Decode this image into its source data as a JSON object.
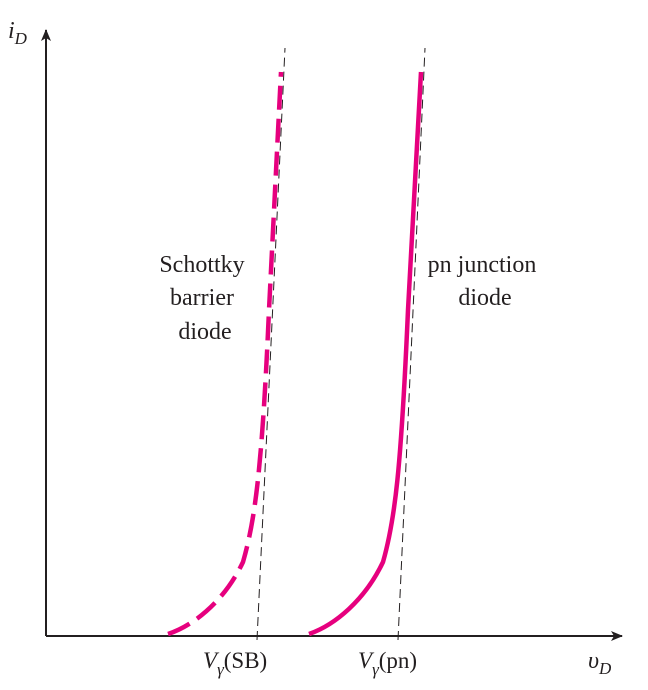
{
  "axes": {
    "y_label_main": "i",
    "y_label_sub": "D",
    "x_label_main": "υ",
    "x_label_sub": "D"
  },
  "curves": {
    "schottky": {
      "label_lines": [
        "Schottky",
        "barrier",
        "diode"
      ],
      "style": "dashed"
    },
    "pn": {
      "label_lines": [
        "pn junction",
        "diode"
      ],
      "style": "solid"
    }
  },
  "ticks": {
    "schottky": {
      "main": "V",
      "sub": "γ",
      "suffix": "(SB)"
    },
    "pn": {
      "main": "V",
      "sub": "γ",
      "suffix": "(pn)"
    }
  },
  "colors": {
    "curve": "#e6007e",
    "axis": "#231f20",
    "text": "#231f20"
  }
}
